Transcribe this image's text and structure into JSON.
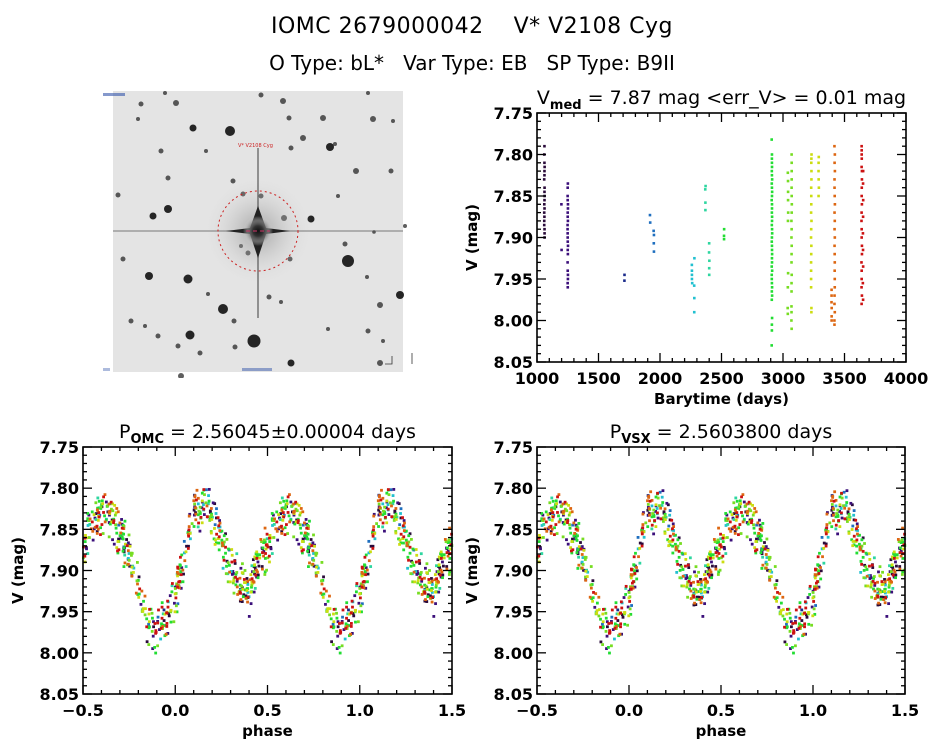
{
  "header": {
    "line1": "IOMC 2679000042    V* V2108 Cyg",
    "line2": "O Type: bL*   Var Type: EB   SP Type: B9II",
    "iomc_id": "IOMC 2679000042",
    "star_name": "V* V2108 Cyg",
    "object_type": "bL*",
    "var_type": "EB",
    "sp_type": "B9II"
  },
  "sky_image": {
    "target_label": "V* V2108 Cyg",
    "description": "finding chart (inverted grayscale) with red dashed circle around target"
  },
  "colors": {
    "groups": [
      "#2a0a3a",
      "#3b0f7a",
      "#1a2a8a",
      "#1f6fbf",
      "#22c0d0",
      "#2ed6a0",
      "#22dd33",
      "#77dd22",
      "#ccdd11",
      "#dd6611",
      "#cc1111"
    ]
  },
  "chart_data": [
    {
      "id": "timeseries",
      "type": "scatter",
      "title": "V_med = 7.87 mag <err_V> = 0.01 mag",
      "title_main": "V",
      "title_sub": "med",
      "title_rest": " = 7.87 mag <err_V> = 0.01 mag",
      "xlabel": "Barytime (days)",
      "ylabel": "V (mag)",
      "xlim": [
        1000,
        4000
      ],
      "ylim": [
        8.05,
        7.75
      ],
      "xticks": [
        1000,
        1500,
        2000,
        2500,
        3000,
        3500,
        4000
      ],
      "yticks": [
        7.75,
        7.8,
        7.85,
        7.9,
        7.95,
        8.0,
        8.05
      ],
      "grid": false,
      "legend": "none",
      "clusters": [
        {
          "group": 0,
          "t": 1060,
          "v": [
            7.79,
            7.8,
            7.81,
            7.815,
            7.82,
            7.825,
            7.83,
            7.84,
            7.845,
            7.85,
            7.855,
            7.86,
            7.865,
            7.87,
            7.875,
            7.88,
            7.885,
            7.89,
            7.895,
            7.9
          ]
        },
        {
          "group": 1,
          "t": 1200,
          "v": [
            7.86,
            7.915
          ]
        },
        {
          "group": 1,
          "t": 1250,
          "v": [
            7.835,
            7.84,
            7.85,
            7.855,
            7.86,
            7.865,
            7.87,
            7.875,
            7.88,
            7.885,
            7.89,
            7.895,
            7.9,
            7.905,
            7.91,
            7.915,
            7.92,
            7.93,
            7.94,
            7.945,
            7.95,
            7.955,
            7.96
          ]
        },
        {
          "group": 2,
          "t": 1710,
          "v": [
            7.945,
            7.952
          ]
        },
        {
          "group": 3,
          "t": 1920,
          "v": [
            7.873,
            7.882
          ]
        },
        {
          "group": 3,
          "t": 1950,
          "v": [
            7.892,
            7.897,
            7.907,
            7.917
          ]
        },
        {
          "group": 4,
          "t": 2260,
          "v": [
            7.933,
            7.94,
            7.945,
            7.95,
            7.955
          ]
        },
        {
          "group": 4,
          "t": 2280,
          "v": [
            7.925,
            7.958,
            7.973,
            7.99
          ]
        },
        {
          "group": 5,
          "t": 2370,
          "v": [
            7.838,
            7.842,
            7.858,
            7.867
          ]
        },
        {
          "group": 5,
          "t": 2400,
          "v": [
            7.907,
            7.918,
            7.928,
            7.937,
            7.945
          ]
        },
        {
          "group": 6,
          "t": 2520,
          "v": [
            7.89,
            7.898,
            7.902
          ]
        },
        {
          "group": 6,
          "t": 2910,
          "v": [
            7.782,
            7.8,
            7.805,
            7.81,
            7.815,
            7.82,
            7.825,
            7.83,
            7.835,
            7.84,
            7.845,
            7.85,
            7.855,
            7.86,
            7.865,
            7.87,
            7.875,
            7.88,
            7.885,
            7.89,
            7.895,
            7.9,
            7.905,
            7.91,
            7.915,
            7.92,
            7.925,
            7.93,
            7.935,
            7.94,
            7.945,
            7.95,
            7.955,
            7.96,
            7.965,
            7.97,
            7.975,
            7.997,
            8.005,
            8.012,
            8.03
          ]
        },
        {
          "group": 7,
          "t": 3040,
          "v": [
            7.822,
            7.832,
            7.845,
            7.855,
            7.87,
            7.88,
            7.943,
            7.96,
            7.985,
            7.992
          ]
        },
        {
          "group": 7,
          "t": 3070,
          "v": [
            7.8,
            7.81,
            7.82,
            7.83,
            7.84,
            7.85,
            7.86,
            7.87,
            7.88,
            7.89,
            7.9,
            7.91,
            7.92,
            7.93,
            7.945,
            7.955,
            7.965,
            7.983,
            7.99,
            8.0,
            8.01
          ]
        },
        {
          "group": 8,
          "t": 3230,
          "v": [
            7.8,
            7.805,
            7.81,
            7.82,
            7.83,
            7.84,
            7.85,
            7.86,
            7.87,
            7.88,
            7.89,
            7.9,
            7.91,
            7.92,
            7.93,
            7.94,
            7.95,
            7.96,
            7.985,
            7.99
          ]
        },
        {
          "group": 8,
          "t": 3290,
          "v": [
            7.803,
            7.81,
            7.82,
            7.83,
            7.84,
            7.85
          ]
        },
        {
          "group": 9,
          "t": 3420,
          "v": [
            7.79,
            7.8,
            7.81,
            7.82,
            7.83,
            7.84,
            7.85,
            7.86,
            7.87,
            7.88,
            7.89,
            7.9,
            7.91,
            7.92,
            7.93,
            7.94,
            7.95,
            7.96,
            7.97,
            7.98,
            7.99,
            8.0,
            8.005
          ]
        },
        {
          "group": 9,
          "t": 3395,
          "v": [
            7.963,
            7.97,
            7.978,
            7.985,
            7.995,
            8.0
          ]
        },
        {
          "group": 10,
          "t": 3640,
          "v": [
            7.79,
            7.795,
            7.8,
            7.805,
            7.815,
            7.82,
            7.83,
            7.84,
            7.85,
            7.86,
            7.87,
            7.88,
            7.89,
            7.9,
            7.91,
            7.92,
            7.93,
            7.94,
            7.95,
            7.96,
            7.97,
            7.98
          ]
        },
        {
          "group": 10,
          "t": 3650,
          "v": [
            7.82,
            7.835,
            7.855,
            7.875,
            7.895,
            7.915,
            7.935,
            7.955,
            7.975
          ]
        }
      ]
    },
    {
      "id": "phase-omc",
      "type": "scatter",
      "title": "P_OMC = 2.56045±0.00004 days",
      "title_main": "P",
      "title_sub": "OMC",
      "title_rest": " = 2.56045±0.00004 days",
      "period_days": 2.56045,
      "period_err_days": 4e-05,
      "xlabel": "phase",
      "ylabel": "V (mag)",
      "xlim": [
        -0.5,
        1.5
      ],
      "ylim": [
        8.05,
        7.75
      ],
      "xticks": [
        -0.5,
        0.0,
        0.5,
        1.0,
        1.5
      ],
      "yticks": [
        7.75,
        7.8,
        7.85,
        7.9,
        7.95,
        8.0,
        8.05
      ],
      "grid": false,
      "legend": "none",
      "light_curve": {
        "phase": [
          0.0,
          0.05,
          0.1,
          0.15,
          0.2,
          0.25,
          0.3,
          0.35,
          0.4,
          0.45,
          0.5,
          0.55,
          0.6,
          0.65,
          0.7,
          0.75,
          0.8,
          0.85,
          0.9,
          0.95,
          1.0
        ],
        "V": [
          7.935,
          7.875,
          7.835,
          7.82,
          7.83,
          7.865,
          7.895,
          7.915,
          7.925,
          7.895,
          7.87,
          7.845,
          7.83,
          7.835,
          7.855,
          7.88,
          7.92,
          7.965,
          7.975,
          7.96,
          7.935
        ],
        "scatter_mag": 0.025
      }
    },
    {
      "id": "phase-vsx",
      "type": "scatter",
      "title": "P_VSX = 2.5603800 days",
      "title_main": "P",
      "title_sub": "VSX",
      "title_rest": " = 2.5603800 days",
      "period_days": 2.56038,
      "xlabel": "phase",
      "ylabel": "V (mag)",
      "xlim": [
        -0.5,
        1.5
      ],
      "ylim": [
        8.05,
        7.75
      ],
      "xticks": [
        -0.5,
        0.0,
        0.5,
        1.0,
        1.5
      ],
      "yticks": [
        7.75,
        7.8,
        7.85,
        7.9,
        7.95,
        8.0,
        8.05
      ],
      "grid": false,
      "legend": "none",
      "light_curve": {
        "phase": [
          0.0,
          0.05,
          0.1,
          0.15,
          0.2,
          0.25,
          0.3,
          0.35,
          0.4,
          0.45,
          0.5,
          0.55,
          0.6,
          0.65,
          0.7,
          0.75,
          0.8,
          0.85,
          0.9,
          0.95,
          1.0
        ],
        "V": [
          7.94,
          7.87,
          7.835,
          7.825,
          7.83,
          7.87,
          7.9,
          7.92,
          7.925,
          7.895,
          7.87,
          7.845,
          7.83,
          7.835,
          7.855,
          7.885,
          7.925,
          7.965,
          7.975,
          7.96,
          7.94
        ],
        "scatter_mag": 0.025
      }
    }
  ]
}
